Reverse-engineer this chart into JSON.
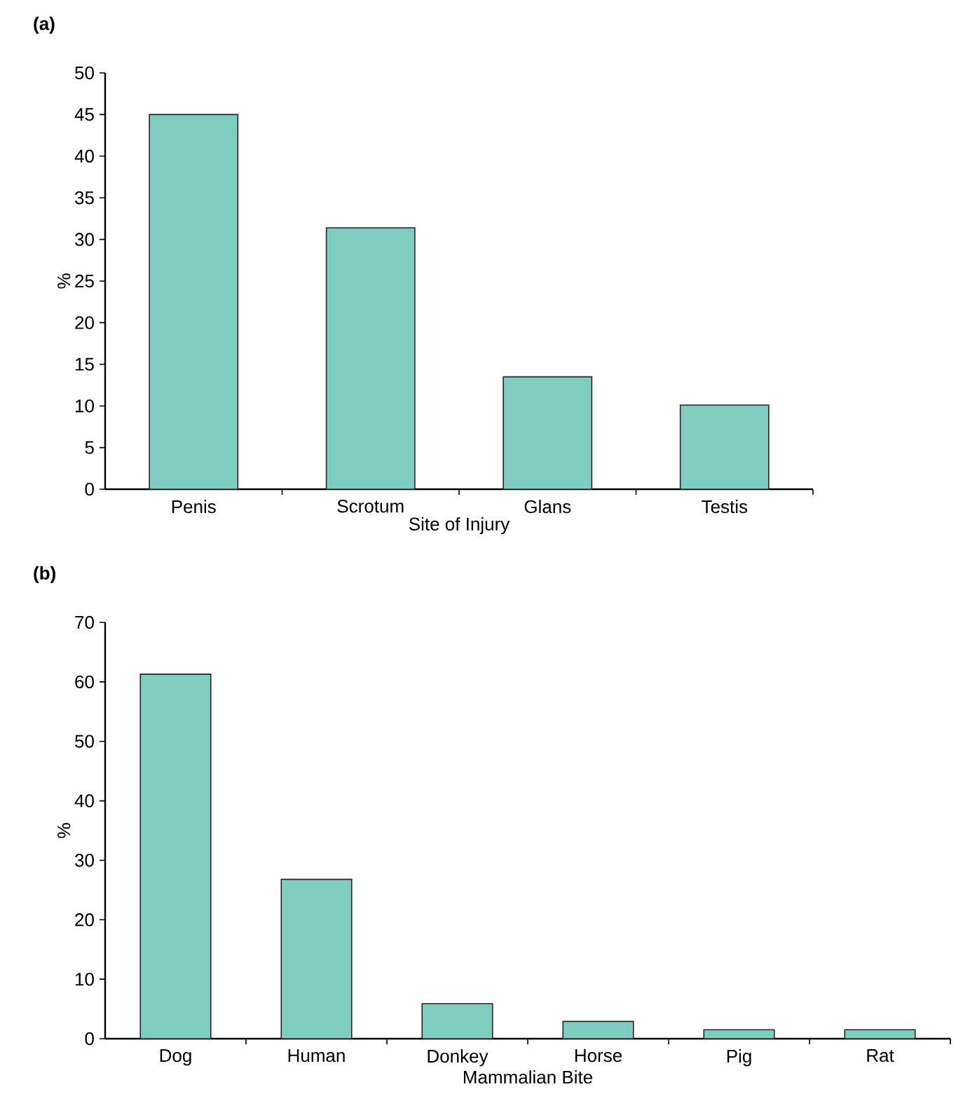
{
  "chart_data": [
    {
      "type": "bar",
      "title": "**(a)**",
      "categories": [
        "Penis",
        "Scrotum",
        "Glans",
        "Testis"
      ],
      "values": [
        45,
        31.4,
        13.5,
        10.1
      ],
      "color": "#7ecdc0",
      "xlabel": "Site of Injury",
      "ylabel": "%",
      "ylim": [
        0,
        50
      ],
      "yticks": [
        0,
        5,
        10,
        15,
        20,
        25,
        30,
        35,
        40,
        45,
        50
      ]
    },
    {
      "type": "bar",
      "title": "**(b)**",
      "categories": [
        "Dog",
        "Human",
        "Donkey",
        "Horse",
        "Pig",
        "Rat"
      ],
      "values": [
        61.3,
        26.8,
        5.9,
        2.9,
        1.5,
        1.5
      ],
      "color": "#7ecdc0",
      "xlabel": "Mammalian Bite",
      "ylabel": "%",
      "ylim": [
        0,
        70
      ],
      "yticks": [
        0,
        10,
        20,
        30,
        40,
        50,
        60,
        70
      ]
    }
  ]
}
